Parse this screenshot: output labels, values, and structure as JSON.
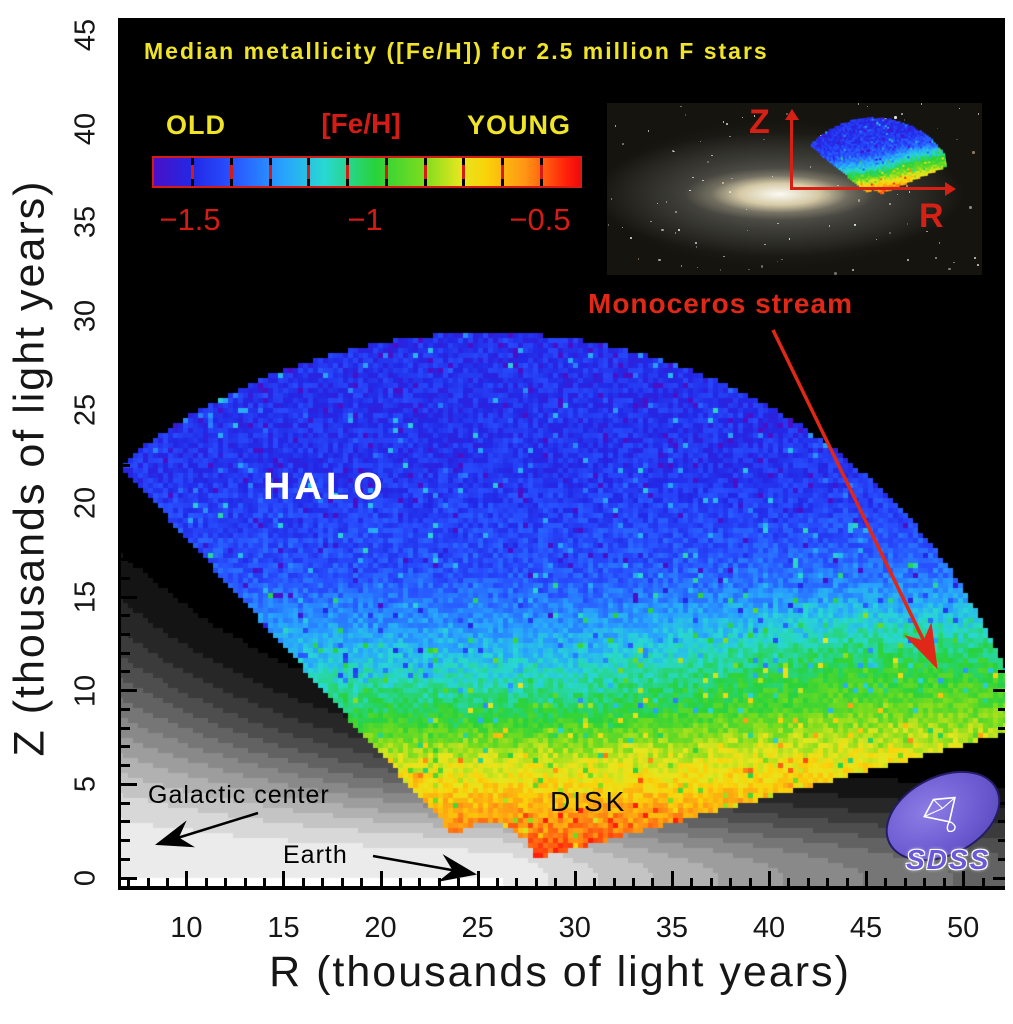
{
  "figure": {
    "title": "Median metallicity ([Fe/H]) for 2.5 million F stars",
    "source_logo": "SDSS",
    "colors": {
      "title_yellow": "#f0e428",
      "legend_red": "#d41b15",
      "annotation_red": "#e02818",
      "halo_white": "#ffffff",
      "annotation_black": "#0a0a0a",
      "sdss_purple": "#6a58d8",
      "plot_background": "#000000",
      "page_background": "#ffffff"
    }
  },
  "colorbar": {
    "label_left": "OLD",
    "label_center": "[Fe/H]",
    "label_right": "YOUNG",
    "values": [
      "−1.5",
      "−1",
      "−0.5"
    ],
    "segments": 11
  },
  "axes": {
    "x": {
      "title": "R (thousands of light years)",
      "ticks": [
        10,
        15,
        20,
        25,
        30,
        35,
        40,
        45,
        50
      ],
      "tick_labels": [
        "10",
        "15",
        "20",
        "25",
        "30",
        "35",
        "40",
        "45",
        "50"
      ]
    },
    "y": {
      "title": "Z (thousands of light years)",
      "ticks": [
        0,
        5,
        10,
        15,
        20,
        25,
        30,
        35,
        40,
        45
      ],
      "tick_labels": [
        "0",
        "5",
        "10",
        "15",
        "20",
        "25",
        "30",
        "35",
        "40",
        "45"
      ]
    }
  },
  "annotations": {
    "halo": "HALO",
    "disk": "DISK",
    "galactic_center": "Galactic center",
    "earth": "Earth",
    "monoceros": "Monoceros stream"
  },
  "inset": {
    "z_axis_label": "Z",
    "r_axis_label": "R"
  },
  "logo": {
    "text": "SDSS"
  },
  "chart_data": {
    "type": "heatmap",
    "title": "Median metallicity ([Fe/H]) for 2.5 million F stars",
    "xlabel": "R (thousands of light years)",
    "ylabel": "Z (thousands of light years)",
    "x_range": [
      6.5,
      52.1
    ],
    "y_range": [
      0,
      46.5
    ],
    "grid": false,
    "legend_position": "top-left",
    "colorbar": {
      "quantity": "[Fe/H]",
      "min": -1.6,
      "max": -0.4,
      "ticks": [
        -1.5,
        -1.0,
        -0.5
      ]
    },
    "colormap_stops": [
      [
        0.0,
        "#4a10c8"
      ],
      [
        0.09,
        "#2228e6"
      ],
      [
        0.18,
        "#2850ff"
      ],
      [
        0.3,
        "#28a0ff"
      ],
      [
        0.4,
        "#28d8d2"
      ],
      [
        0.52,
        "#28d23c"
      ],
      [
        0.63,
        "#78dc1e"
      ],
      [
        0.72,
        "#e6e61e"
      ],
      [
        0.78,
        "#fad20a"
      ],
      [
        0.87,
        "#ff9614"
      ],
      [
        1.0,
        "#ff1e0a"
      ]
    ],
    "metallicity_profile": {
      "comment": "median [Fe/H] vs height Z above the disk (thousands of light years)",
      "Z": [
        0,
        1.5,
        4,
        6.5,
        9,
        12,
        16,
        22,
        40
      ],
      "FeH": [
        -0.4,
        -0.46,
        -0.62,
        -0.78,
        -1.0,
        -1.18,
        -1.38,
        -1.46,
        -1.48
      ]
    },
    "noise_FeH_sigma": 0.07,
    "survey_wedge": {
      "comment": "observed region, sector centred near the Earth position",
      "vertex_R": 25.5,
      "vertex_Z": 0.3,
      "d_min": 2.6,
      "d_max": 28.8,
      "angle_min_deg": 15.5,
      "angle_max_deg": 131
    },
    "monoceros_overdensity": {
      "R_onset": 30,
      "Z_center": 11.5,
      "Z_sigma": 5,
      "FeH_boost": 0.16
    },
    "disk_glow": {
      "comment": "grayscale background disk light",
      "scale_height_kly": [
        2.5,
        11.5
      ],
      "radial_scale_kly": 30
    }
  }
}
